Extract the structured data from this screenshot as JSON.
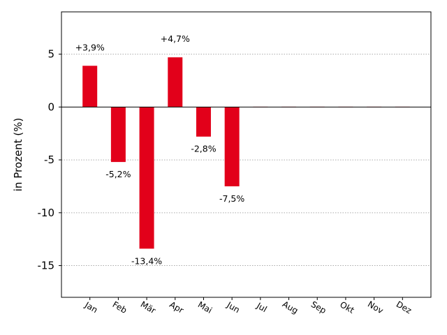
{
  "chart_data": {
    "type": "bar",
    "ylabel": "in Prozent (%)",
    "ylim": [
      -18,
      9
    ],
    "yticks": [
      5,
      0,
      -5,
      -10,
      -15
    ],
    "ytick_labels": [
      "5",
      "0",
      "-5",
      "-10",
      "-15"
    ],
    "grid": "horizontal dotted",
    "categories": [
      "Jan",
      "Feb",
      "Mär",
      "Apr",
      "Mai",
      "Jun",
      "Jul",
      "Aug",
      "Sep",
      "Okt",
      "Nov",
      "Dez"
    ],
    "values": [
      3.9,
      -5.2,
      -13.4,
      4.7,
      -2.8,
      -7.5,
      null,
      null,
      null,
      null,
      null,
      null
    ],
    "data_labels": [
      "+3,9%",
      "-5,2%",
      "-13,4%",
      "+4,7%",
      "-2,8%",
      "-7,5%",
      "",
      "",
      "",
      "",
      "",
      ""
    ],
    "bar_color": "#e2001a",
    "grid_color": "#aaaaaa",
    "axis_color": "#000000"
  }
}
